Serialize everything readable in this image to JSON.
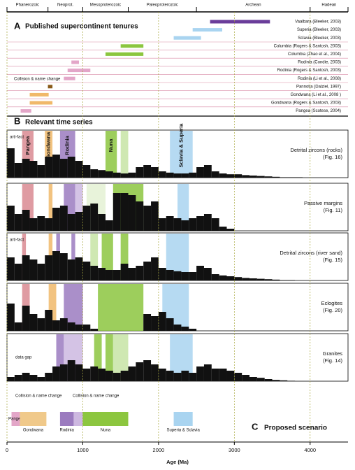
{
  "chart_data": {
    "type": "timeline",
    "x_label": "Age (Ma)",
    "xlim": [
      0,
      4500
    ],
    "xticks": [
      0,
      1000,
      2000,
      3000,
      4000
    ],
    "eons": [
      "Phanerozoic",
      "Neoprot.",
      "Mesoproterozoic",
      "Paleoproterozoic",
      "Archean",
      "Hadean"
    ],
    "eon_boundaries": [
      0,
      541,
      1000,
      1600,
      2500,
      4000,
      4500
    ],
    "panel_a": {
      "letter": "A",
      "title": "Published supercontinent tenures",
      "annotation": "Collision & name change",
      "rows": [
        {
          "label": "Vaalbara (Bleeker, 2003)",
          "start": 2680,
          "end": 3470,
          "color": "#6a3d9a"
        },
        {
          "label": "Superia (Bleeker, 2003)",
          "start": 2450,
          "end": 2840,
          "color": "#a9d4f0"
        },
        {
          "label": "Sclavia (Bleeker, 2003)",
          "start": 2200,
          "end": 2560,
          "color": "#a9d4f0"
        },
        {
          "label": "Columbia (Rogers & Santosh, 2003)",
          "start": 1500,
          "end": 1800,
          "color": "#8cc63f"
        },
        {
          "label": "Columbia (Zhao et al., 2004)",
          "start": 1300,
          "end": 1800,
          "color": "#8cc63f"
        },
        {
          "label": "Rodinia (Condie, 2003)",
          "start": 850,
          "end": 950,
          "color": "#e3a6c8"
        },
        {
          "label": "Rodinia (Rogers & Santosh, 2003)",
          "start": 800,
          "end": 1100,
          "color": "#e3a6c8"
        },
        {
          "label": "Rodinia (Li et al., 2008)",
          "start": 750,
          "end": 900,
          "color": "#e3a6c8"
        },
        {
          "label": "Pannotia (Dalziel, 1997)",
          "start": 540,
          "end": 600,
          "color": "#8a5a1a"
        },
        {
          "label": "Gondwana (Li et al., 2008 )",
          "start": 300,
          "end": 550,
          "color": "#f0b96a"
        },
        {
          "label": "Gondwana (Rogers & Santosh, 2003)",
          "start": 300,
          "end": 600,
          "color": "#f0b96a"
        },
        {
          "label": "Pangea (Scotese, 2004)",
          "start": 180,
          "end": 320,
          "color": "#e3a6c8"
        }
      ]
    },
    "panel_b": {
      "letter": "B",
      "title": "Relevant time series",
      "bins": [
        0,
        100,
        200,
        300,
        400,
        500,
        600,
        700,
        800,
        900,
        1000,
        1100,
        1200,
        1300,
        1400,
        1500,
        1600,
        1700,
        1800,
        1900,
        2000,
        2100,
        2200,
        2300,
        2400,
        2500,
        2600,
        2700,
        2800,
        2900,
        3000,
        3100,
        3200,
        3300,
        3400,
        3500,
        3600,
        3700,
        3800,
        3900,
        4000
      ],
      "series": [
        {
          "name": "Detrital zircons (rocks)",
          "ref": "(Fig. 16)",
          "note": "arti-fact",
          "color": "#111",
          "values": [
            70,
            35,
            45,
            40,
            30,
            50,
            55,
            45,
            50,
            40,
            30,
            20,
            18,
            15,
            12,
            10,
            12,
            25,
            30,
            25,
            15,
            12,
            10,
            10,
            12,
            25,
            30,
            15,
            10,
            8,
            8,
            6,
            5,
            4,
            3,
            2,
            1,
            1,
            1,
            0
          ],
          "bands": [
            {
              "label": "Pangea",
              "start": 200,
              "end": 350,
              "color": "#d98a92"
            },
            {
              "label": "Gondwana",
              "start": 500,
              "end": 600,
              "color": "#f0b96a"
            },
            {
              "label": "Rodinia",
              "start": 700,
              "end": 900,
              "color": "#9b7bbf"
            },
            {
              "label": "Nuna",
              "start": 1300,
              "end": 1450,
              "color": "#8cc63f"
            },
            {
              "start": 1500,
              "end": 1600,
              "color": "#c7e4a4"
            },
            {
              "label": "Sclavia & Superia",
              "start": 2150,
              "end": 2450,
              "color": "#a9d4f0"
            }
          ]
        },
        {
          "name": "Passive margins",
          "ref": "(Fig. 11)",
          "color": "#111",
          "values": [
            60,
            40,
            50,
            30,
            35,
            30,
            55,
            60,
            40,
            45,
            60,
            65,
            40,
            25,
            90,
            90,
            85,
            70,
            60,
            70,
            30,
            35,
            30,
            25,
            30,
            35,
            40,
            30,
            10,
            5,
            0,
            0,
            0,
            0,
            0,
            0,
            0,
            0,
            0,
            0
          ],
          "bands": [
            {
              "start": 200,
              "end": 350,
              "color": "#d98a92"
            },
            {
              "start": 550,
              "end": 600,
              "color": "#f0b96a"
            },
            {
              "start": 750,
              "end": 900,
              "color": "#9b7bbf"
            },
            {
              "start": 900,
              "end": 1000,
              "color": "#cdb8e0"
            },
            {
              "start": 1050,
              "end": 1300,
              "color": "#e4f1d4"
            },
            {
              "start": 1400,
              "end": 1800,
              "color": "#8cc63f"
            },
            {
              "start": 2250,
              "end": 2400,
              "color": "#a9d4f0"
            }
          ]
        },
        {
          "name": "Detrital zircons (river sand)",
          "ref": "(Fig. 15)",
          "note": "arti-fact",
          "color": "#111",
          "values": [
            55,
            40,
            60,
            50,
            40,
            60,
            70,
            65,
            50,
            55,
            45,
            35,
            30,
            25,
            25,
            40,
            30,
            35,
            45,
            55,
            30,
            25,
            22,
            20,
            20,
            35,
            30,
            15,
            12,
            10,
            8,
            6,
            5,
            4,
            3,
            2,
            1,
            1,
            0,
            0
          ],
          "bands": [
            {
              "start": 200,
              "end": 250,
              "color": "#d98a92"
            },
            {
              "start": 550,
              "end": 600,
              "color": "#f0b96a"
            },
            {
              "start": 650,
              "end": 700,
              "color": "#9b7bbf"
            },
            {
              "start": 850,
              "end": 900,
              "color": "#9b7bbf"
            },
            {
              "start": 1100,
              "end": 1200,
              "color": "#c7e4a4"
            },
            {
              "start": 1250,
              "end": 1400,
              "color": "#8cc63f"
            },
            {
              "start": 1500,
              "end": 1600,
              "color": "#8cc63f"
            },
            {
              "start": 2100,
              "end": 2400,
              "color": "#a9d4f0"
            }
          ]
        },
        {
          "name": "Eclogites",
          "ref": "(Fig. 20)",
          "color": "#111",
          "values": [
            65,
            20,
            60,
            40,
            30,
            50,
            25,
            30,
            20,
            15,
            15,
            5,
            0,
            0,
            0,
            0,
            0,
            0,
            40,
            35,
            45,
            30,
            15,
            10,
            5,
            0,
            0,
            0,
            0,
            0,
            0,
            0,
            0,
            0,
            0,
            0,
            0,
            0,
            0,
            0
          ],
          "bands": [
            {
              "start": 200,
              "end": 300,
              "color": "#d98a92"
            },
            {
              "start": 550,
              "end": 650,
              "color": "#f0b96a"
            },
            {
              "start": 750,
              "end": 1000,
              "color": "#9b7bbf"
            },
            {
              "start": 1200,
              "end": 1800,
              "color": "#8cc63f"
            },
            {
              "start": 2050,
              "end": 2400,
              "color": "#a9d4f0"
            }
          ]
        },
        {
          "name": "Granites",
          "ref": "(Fig. 14)",
          "note": "data gap",
          "color": "#111",
          "values": [
            10,
            15,
            20,
            15,
            10,
            20,
            35,
            40,
            50,
            40,
            30,
            35,
            30,
            25,
            20,
            25,
            35,
            45,
            50,
            40,
            30,
            25,
            20,
            25,
            20,
            35,
            40,
            30,
            30,
            25,
            20,
            15,
            10,
            8,
            5,
            3,
            2,
            1,
            0,
            0
          ],
          "bands": [
            {
              "start": 650,
              "end": 750,
              "color": "#9b7bbf"
            },
            {
              "start": 750,
              "end": 1000,
              "color": "#cdb8e0"
            },
            {
              "start": 1150,
              "end": 1250,
              "color": "#8cc63f"
            },
            {
              "start": 1300,
              "end": 1400,
              "color": "#8cc63f"
            },
            {
              "start": 1400,
              "end": 1600,
              "color": "#c7e4a4"
            },
            {
              "start": 2150,
              "end": 2450,
              "color": "#a9d4f0"
            }
          ]
        }
      ]
    },
    "panel_c": {
      "letter": "C",
      "title": "Proposed scenario",
      "annotation": "Collision & name change",
      "bars": [
        {
          "label": "Pangea",
          "start": 60,
          "end": 170,
          "color": "#e3a6c8"
        },
        {
          "label": "Gondwana",
          "start": 170,
          "end": 520,
          "color": "#f0c98a"
        },
        {
          "label": "Rodinia",
          "start": 700,
          "end": 880,
          "color": "#9b7bbf"
        },
        {
          "start": 880,
          "end": 1000,
          "color": "#cdb8e0"
        },
        {
          "label": "Nuna",
          "start": 1000,
          "end": 1600,
          "color": "#8cc63f"
        },
        {
          "label": "Superia & Sclavia",
          "start": 2200,
          "end": 2450,
          "color": "#a9d4f0"
        }
      ]
    }
  }
}
